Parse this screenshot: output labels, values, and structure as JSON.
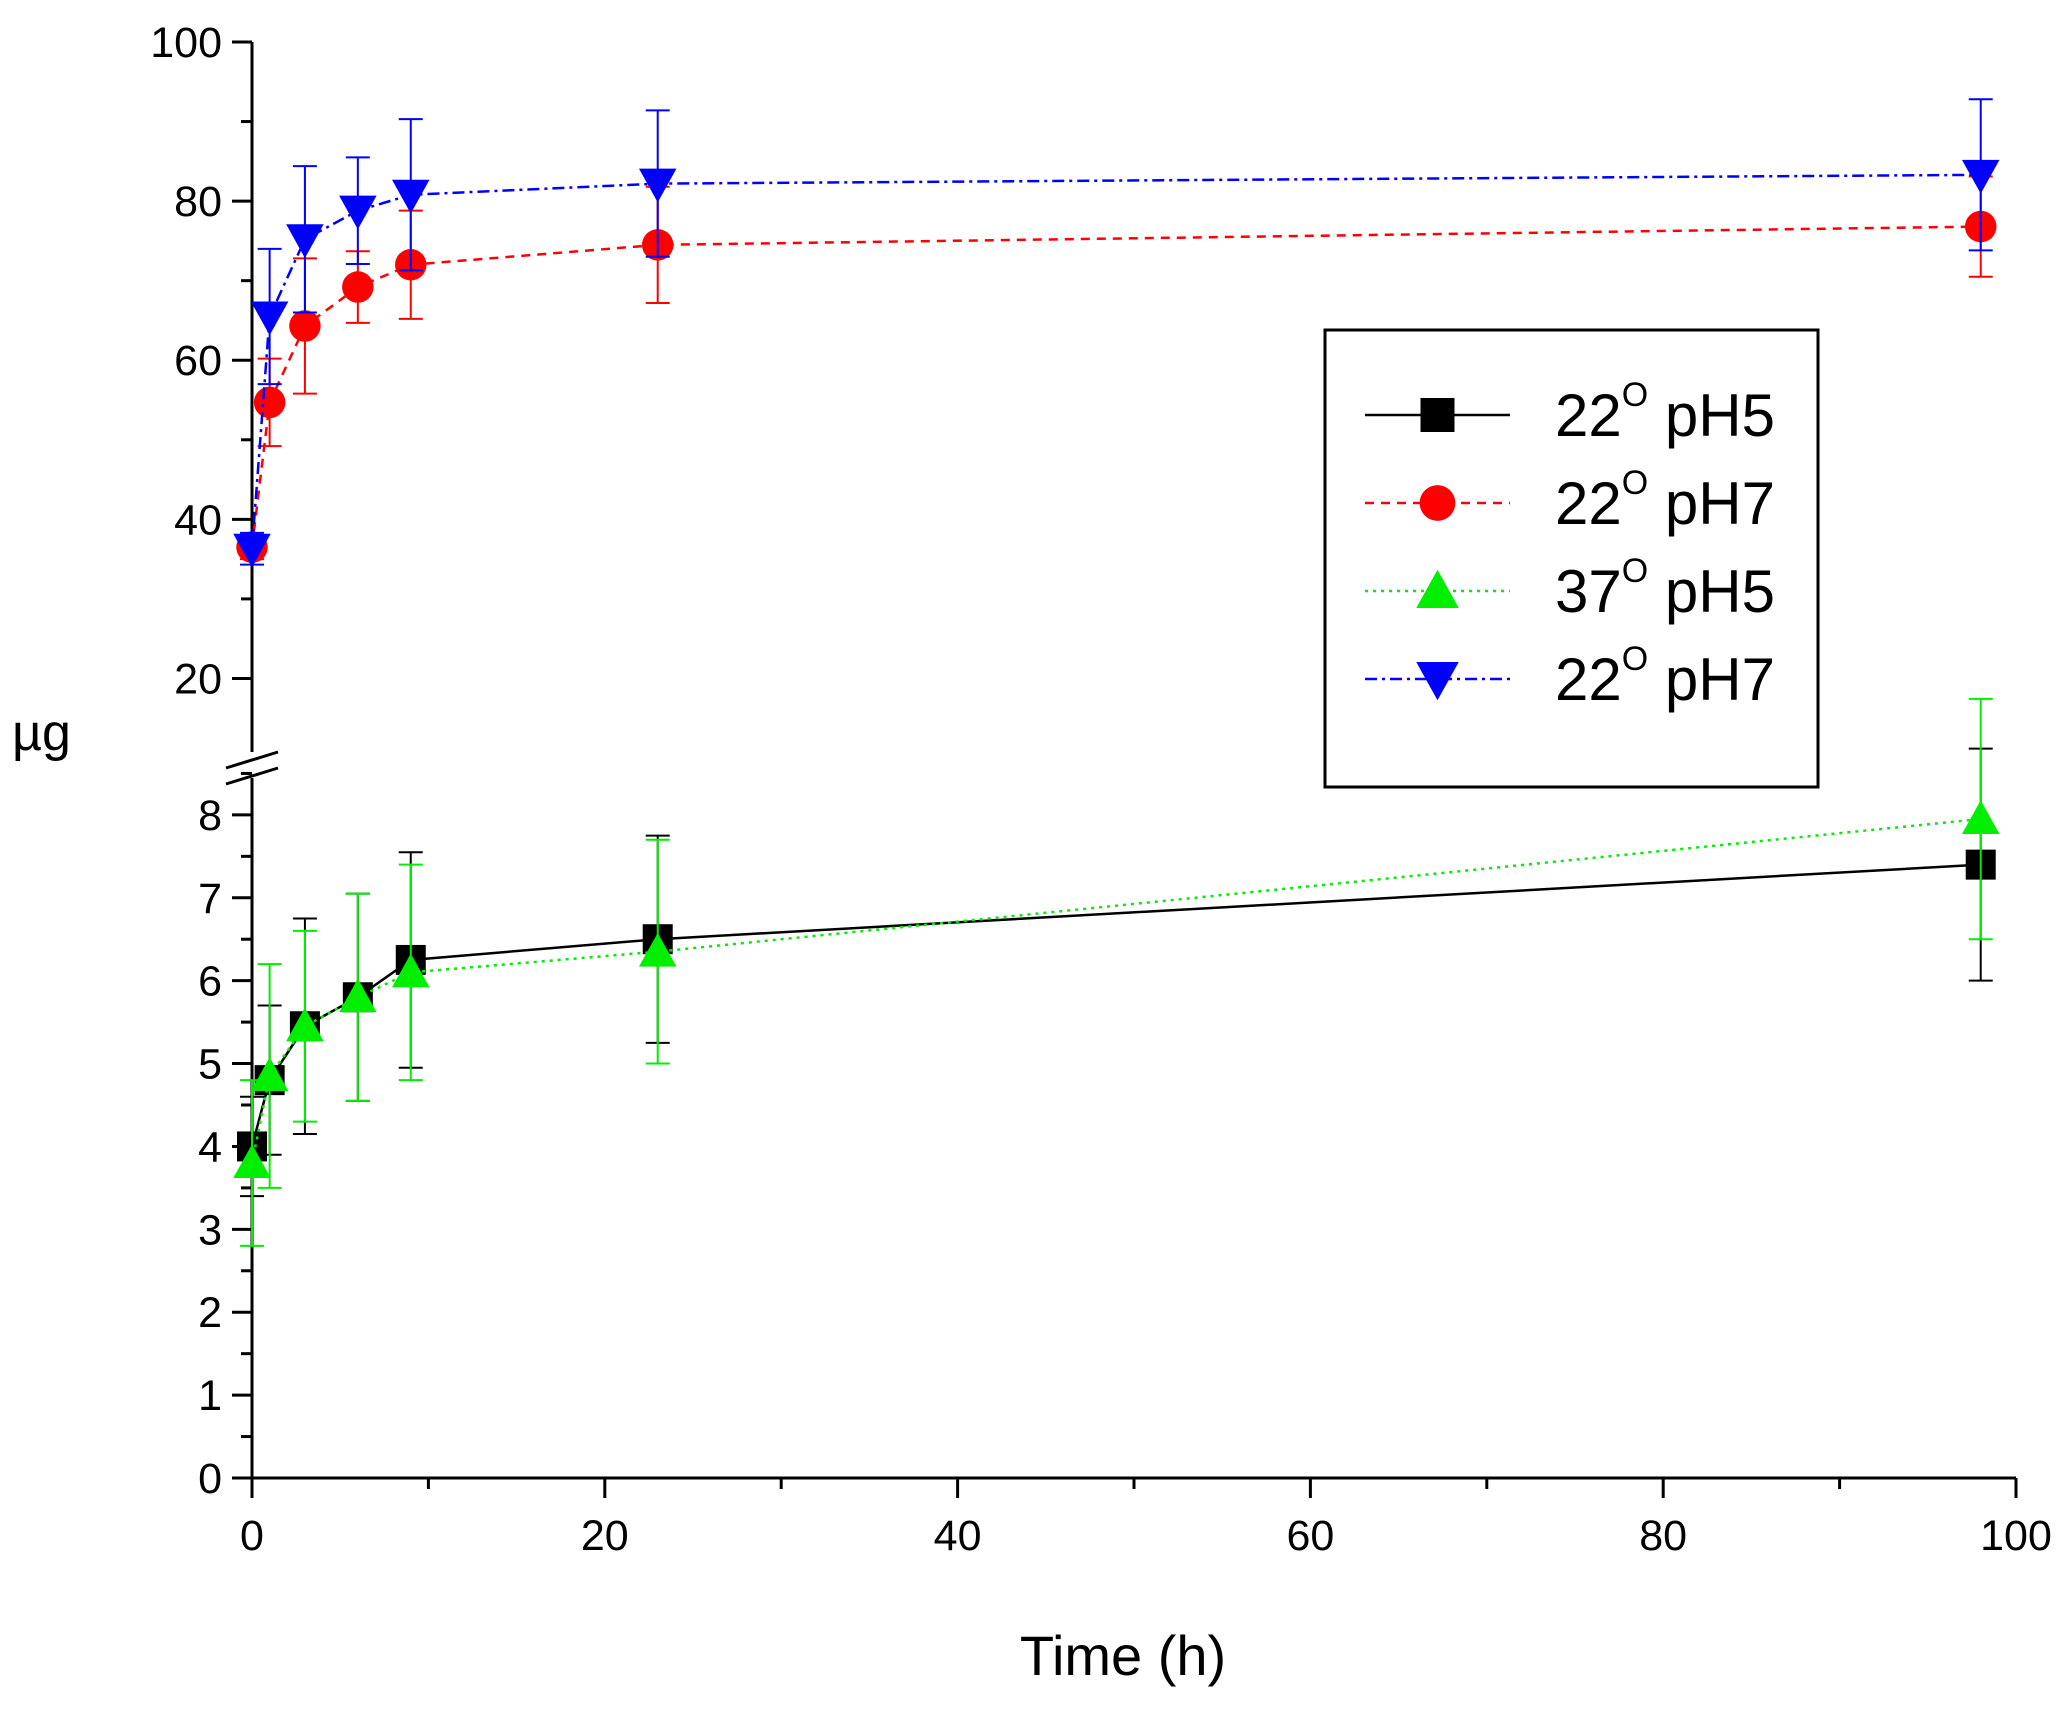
{
  "chart_data": {
    "type": "line",
    "title": "",
    "xlabel": "Time (h)",
    "ylabel": "µg",
    "xlim": [
      0,
      100
    ],
    "x_ticks": [
      0,
      20,
      40,
      60,
      80,
      100
    ],
    "y_axis_broken": true,
    "y_upper_range": [
      10,
      100
    ],
    "y_upper_ticks": [
      20,
      40,
      60,
      80,
      100
    ],
    "y_lower_range": [
      0,
      9
    ],
    "y_lower_ticks": [
      0,
      1,
      2,
      3,
      4,
      5,
      6,
      7,
      8
    ],
    "x": [
      0,
      1,
      3,
      6,
      9,
      23,
      98
    ],
    "legend_position": "right",
    "series": [
      {
        "name": "22°pH5",
        "label_main": "22",
        "label_sup": "O",
        "label_rest": " pH5",
        "color": "#000000",
        "marker": "square",
        "dash": "",
        "values": [
          4.0,
          4.8,
          5.45,
          5.8,
          6.25,
          6.5,
          7.4
        ],
        "errors": [
          0.6,
          0.9,
          1.3,
          1.25,
          1.3,
          1.25,
          1.4
        ]
      },
      {
        "name": "22°pH7",
        "label_main": "22",
        "label_sup": "O",
        "label_rest": " pH7",
        "color": "#ff0000",
        "marker": "circle",
        "dash": "9,7",
        "values": [
          36.5,
          54.7,
          64.3,
          69.2,
          72.0,
          74.5,
          76.8
        ],
        "errors": [
          1.5,
          5.5,
          8.5,
          4.5,
          6.8,
          7.3,
          6.3
        ]
      },
      {
        "name": "37°pH5",
        "label_main": "37",
        "label_sup": "O",
        "label_rest": " pH5",
        "color": "#00ee00",
        "marker": "triangle-up",
        "dash": "3,5",
        "values": [
          3.8,
          4.85,
          5.45,
          5.8,
          6.1,
          6.35,
          7.95
        ],
        "errors": [
          1.0,
          1.35,
          1.15,
          1.25,
          1.3,
          1.35,
          1.45
        ]
      },
      {
        "name": "22°pH7",
        "label_main": "22",
        "label_sup": "O",
        "label_rest": " pH7",
        "color": "#0000ff",
        "marker": "triangle-down",
        "dash": "12,5,3,5",
        "values": [
          36.3,
          65.5,
          75.2,
          78.8,
          80.8,
          82.2,
          83.3
        ],
        "errors": [
          2.0,
          8.5,
          9.2,
          6.7,
          9.5,
          9.2,
          9.5
        ]
      }
    ]
  }
}
